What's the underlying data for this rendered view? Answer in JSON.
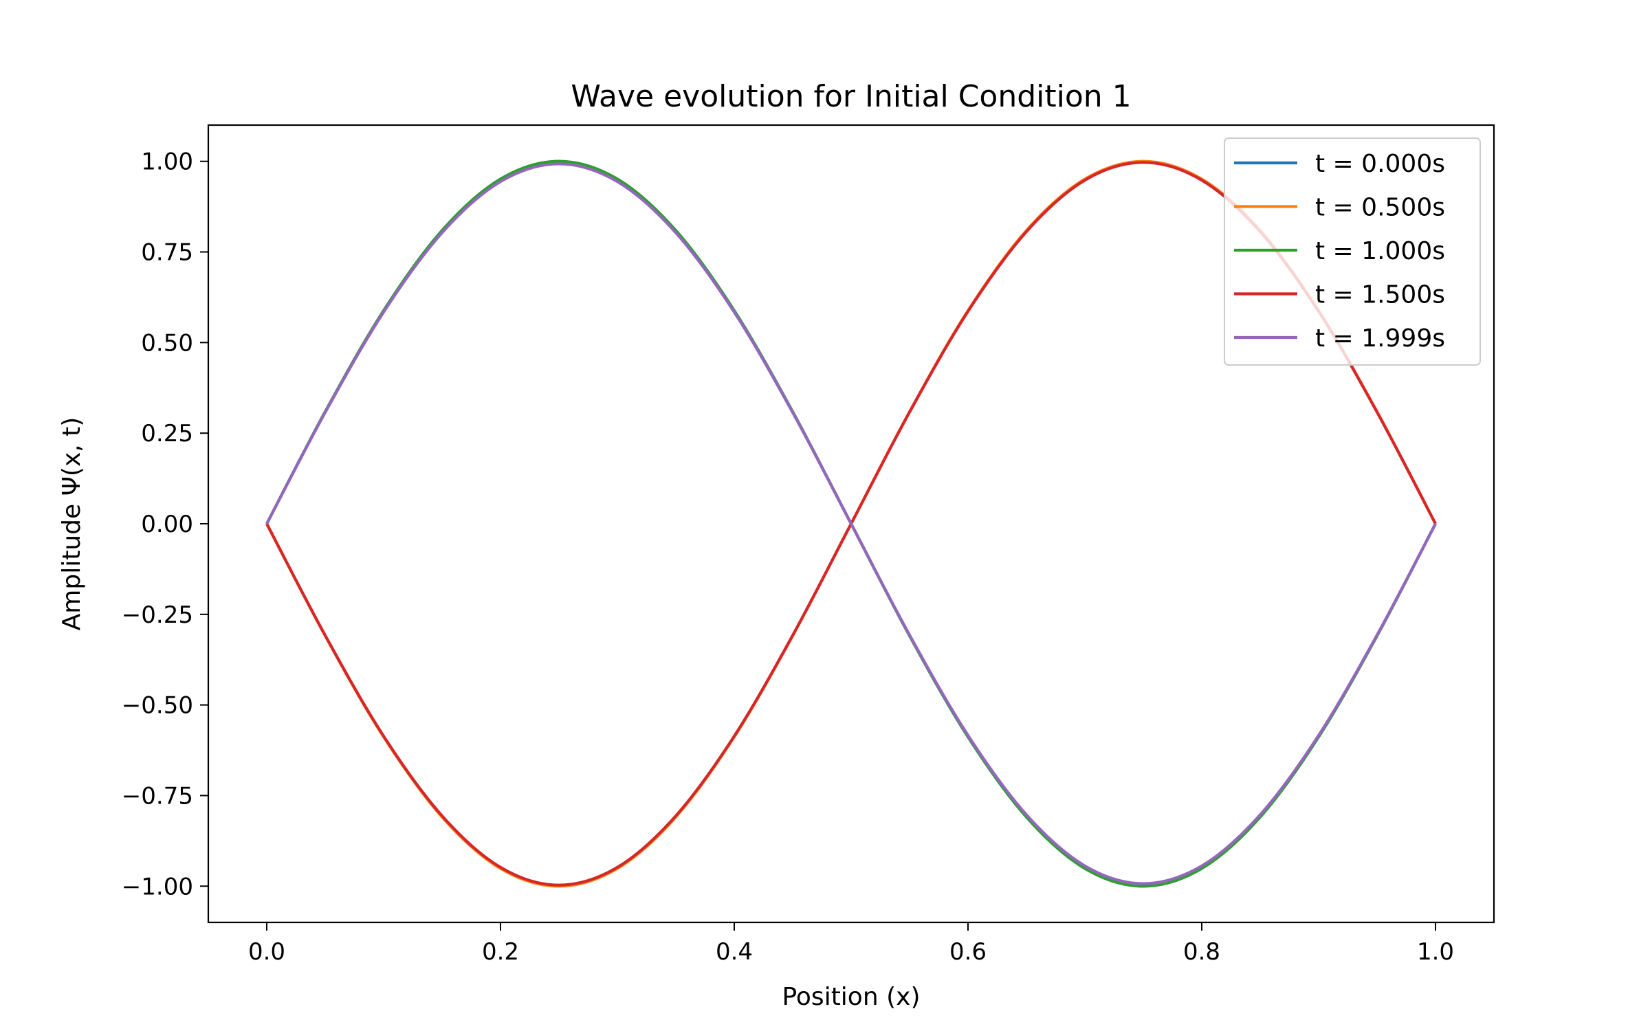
{
  "chart_data": {
    "type": "line",
    "title": "Wave evolution for Initial Condition 1",
    "xlabel": "Position (x)",
    "ylabel": "Amplitude Ψ(x, t)",
    "xlim": [
      -0.05,
      1.05
    ],
    "ylim": [
      -1.1,
      1.1
    ],
    "xticks": [
      0.0,
      0.2,
      0.4,
      0.6,
      0.8,
      1.0
    ],
    "xtick_labels": [
      "0.0",
      "0.2",
      "0.4",
      "0.6",
      "0.8",
      "1.0"
    ],
    "yticks": [
      1.0,
      0.75,
      0.5,
      0.25,
      0.0,
      -0.25,
      -0.5,
      -0.75,
      -1.0
    ],
    "ytick_labels": [
      "1.00",
      "0.75",
      "0.50",
      "0.25",
      "0.00",
      "−0.25",
      "−0.50",
      "−0.75",
      "−1.00"
    ],
    "grid": false,
    "legend_position": "top-right",
    "x": [
      0.0,
      0.05,
      0.1,
      0.15,
      0.2,
      0.25,
      0.3,
      0.35,
      0.4,
      0.45,
      0.5,
      0.55,
      0.6,
      0.65,
      0.7,
      0.75,
      0.8,
      0.85,
      0.9,
      0.95,
      1.0
    ],
    "series": [
      {
        "name": "t = 0.000s",
        "color": "#1f77b4",
        "values": [
          0.0,
          0.309,
          0.588,
          0.809,
          0.951,
          1.0,
          0.951,
          0.809,
          0.588,
          0.309,
          0.0,
          -0.309,
          -0.588,
          -0.809,
          -0.951,
          -1.0,
          -0.951,
          -0.809,
          -0.588,
          -0.309,
          0.0
        ]
      },
      {
        "name": "t = 0.500s",
        "color": "#ff7f0e",
        "values": [
          0.0,
          -0.309,
          -0.588,
          -0.809,
          -0.951,
          -1.0,
          -0.951,
          -0.809,
          -0.588,
          -0.309,
          0.0,
          0.309,
          0.588,
          0.809,
          0.951,
          1.0,
          0.951,
          0.809,
          0.588,
          0.309,
          0.0
        ]
      },
      {
        "name": "t = 1.000s",
        "color": "#2ca02c",
        "values": [
          0.0,
          0.309,
          0.588,
          0.809,
          0.951,
          1.0,
          0.951,
          0.809,
          0.588,
          0.309,
          0.0,
          -0.309,
          -0.588,
          -0.809,
          -0.951,
          -1.0,
          -0.951,
          -0.809,
          -0.588,
          -0.309,
          0.0
        ]
      },
      {
        "name": "t = 1.500s",
        "color": "#d62728",
        "values": [
          0.0,
          -0.308,
          -0.586,
          -0.806,
          -0.948,
          -0.997,
          -0.948,
          -0.806,
          -0.586,
          -0.308,
          0.0,
          0.308,
          0.586,
          0.806,
          0.948,
          0.997,
          0.948,
          0.806,
          0.586,
          0.308,
          0.0
        ]
      },
      {
        "name": "t = 1.999s",
        "color": "#9467bd",
        "values": [
          0.0,
          0.307,
          0.584,
          0.803,
          0.944,
          0.993,
          0.944,
          0.803,
          0.584,
          0.307,
          0.0,
          -0.307,
          -0.584,
          -0.803,
          -0.944,
          -0.993,
          -0.944,
          -0.803,
          -0.584,
          -0.307,
          0.0
        ]
      }
    ]
  }
}
